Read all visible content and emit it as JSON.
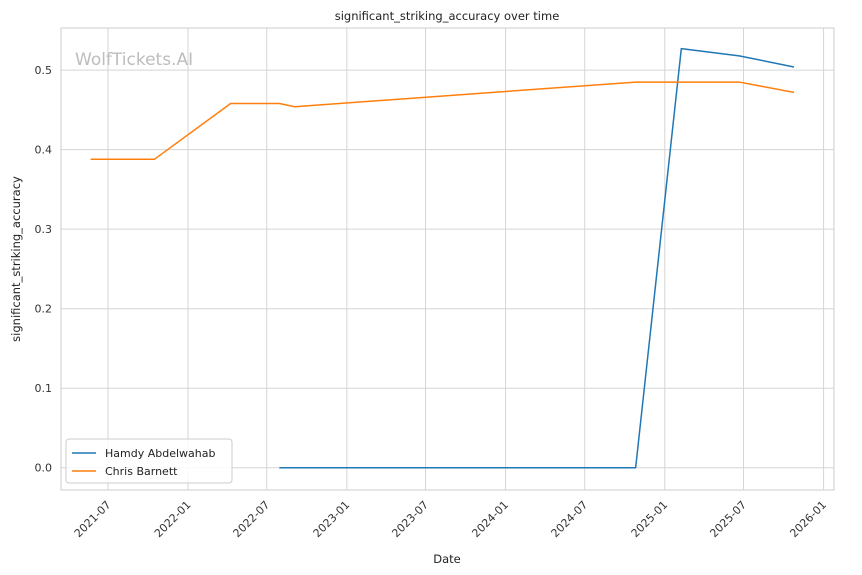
{
  "watermark": "WolfTickets.AI",
  "chart_data": {
    "type": "line",
    "title": "significant_striking_accuracy over time",
    "xlabel": "Date",
    "ylabel": "significant_striking_accuracy",
    "x_type": "date",
    "xlim": [
      "2021-03-15",
      "2026-01-25"
    ],
    "ylim": [
      -0.028,
      0.553
    ],
    "x_ticks": [
      "2021-07-01",
      "2022-01-01",
      "2022-07-01",
      "2023-01-01",
      "2023-07-01",
      "2024-01-01",
      "2024-07-01",
      "2025-01-01",
      "2025-07-01",
      "2026-01-01"
    ],
    "x_tick_labels": [
      "2021-07",
      "2022-01",
      "2022-07",
      "2023-01",
      "2023-07",
      "2024-01",
      "2024-07",
      "2025-01",
      "2025-07",
      "2026-01"
    ],
    "y_ticks": [
      0.0,
      0.1,
      0.2,
      0.3,
      0.4,
      0.5
    ],
    "y_tick_labels": [
      "0.0",
      "0.1",
      "0.2",
      "0.3",
      "0.4",
      "0.5"
    ],
    "grid": true,
    "legend_position": "bottom-left",
    "series": [
      {
        "name": "Hamdy Abdelwahab",
        "color": "#1f77b4",
        "points": [
          {
            "x": "2022-07-30",
            "y": 0.0
          },
          {
            "x": "2024-10-26",
            "y": 0.0
          },
          {
            "x": "2025-02-08",
            "y": 0.527
          },
          {
            "x": "2025-06-21",
            "y": 0.518
          },
          {
            "x": "2025-10-25",
            "y": 0.504
          }
        ]
      },
      {
        "name": "Chris Barnett",
        "color": "#ff7f0e",
        "points": [
          {
            "x": "2021-05-22",
            "y": 0.388
          },
          {
            "x": "2021-10-16",
            "y": 0.388
          },
          {
            "x": "2022-04-09",
            "y": 0.458
          },
          {
            "x": "2022-07-30",
            "y": 0.458
          },
          {
            "x": "2022-09-03",
            "y": 0.454
          },
          {
            "x": "2024-10-26",
            "y": 0.485
          },
          {
            "x": "2025-06-21",
            "y": 0.485
          },
          {
            "x": "2025-10-25",
            "y": 0.472
          }
        ]
      }
    ]
  }
}
